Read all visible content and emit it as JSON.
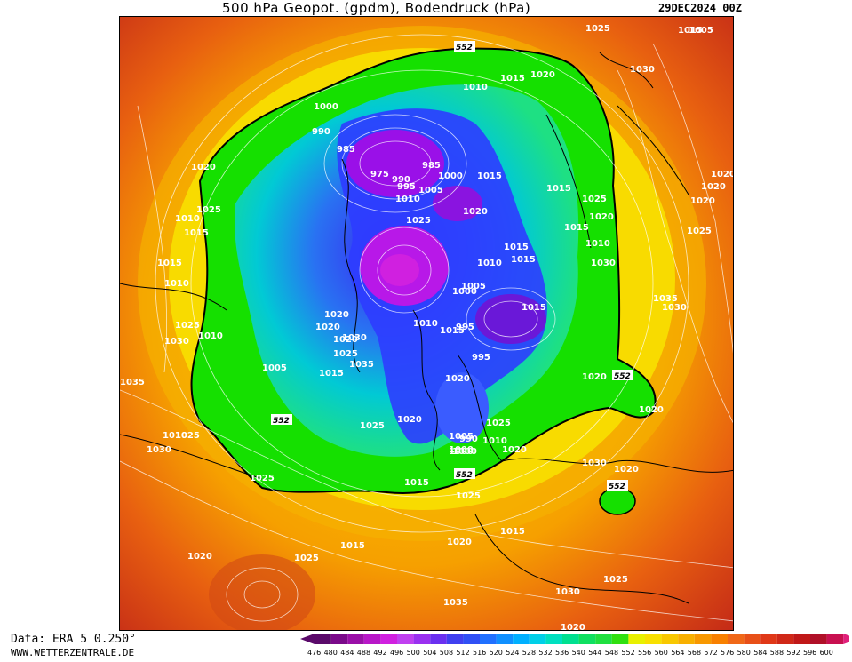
{
  "header": {
    "title": "500 hPa Geopot. (gpdm), Bodendruck (hPa)",
    "datetime": "29DEC2024 00Z"
  },
  "map": {
    "contour_552_label": "552",
    "pressure_labels": [
      "1025",
      "1015",
      "1030",
      "1010",
      "1015",
      "1020",
      "1000",
      "990",
      "985",
      "975",
      "985",
      "990",
      "1000",
      "995",
      "1005",
      "1010",
      "1015",
      "1025",
      "1020",
      "1020",
      "1015",
      "1015",
      "1020",
      "1025",
      "1015",
      "1015",
      "1010",
      "1005",
      "1000",
      "995",
      "1010",
      "995",
      "1000",
      "1015",
      "1020",
      "1025",
      "1030",
      "1035",
      "1025",
      "1020",
      "1025",
      "1010",
      "1005",
      "1000",
      "990",
      "1000",
      "1020",
      "1005",
      "1010",
      "1030",
      "1025",
      "1020",
      "1015",
      "1025",
      "1030",
      "1035",
      "1025",
      "1020",
      "1015",
      "1010",
      "1020",
      "1020",
      "1015",
      "1010",
      "1010",
      "1015",
      "1005",
      "1020",
      "1010",
      "1015",
      "1020",
      "1025",
      "1020",
      "1015",
      "1025",
      "1020",
      "1035",
      "1030",
      "1025",
      "1020",
      "1015",
      "1025",
      "1030",
      "1020",
      "1025",
      "1020",
      "1035",
      "1030",
      "1030",
      "1020"
    ],
    "colors": {
      "low": "#7a00b8",
      "mid": "#1a3cff",
      "green_552": "#19e000",
      "high": "#c0281a",
      "outer": "#e05a10"
    }
  },
  "legend": {
    "scale_values": [
      "476",
      "480",
      "484",
      "488",
      "492",
      "496",
      "500",
      "504",
      "508",
      "512",
      "516",
      "520",
      "524",
      "528",
      "532",
      "536",
      "540",
      "544",
      "548",
      "552",
      "556",
      "560",
      "564",
      "568",
      "572",
      "576",
      "580",
      "584",
      "588",
      "592",
      "596",
      "600"
    ]
  },
  "footer": {
    "source": "Data: ERA 5 0.250°",
    "website": "WWW.WETTERZENTRALE.DE"
  }
}
